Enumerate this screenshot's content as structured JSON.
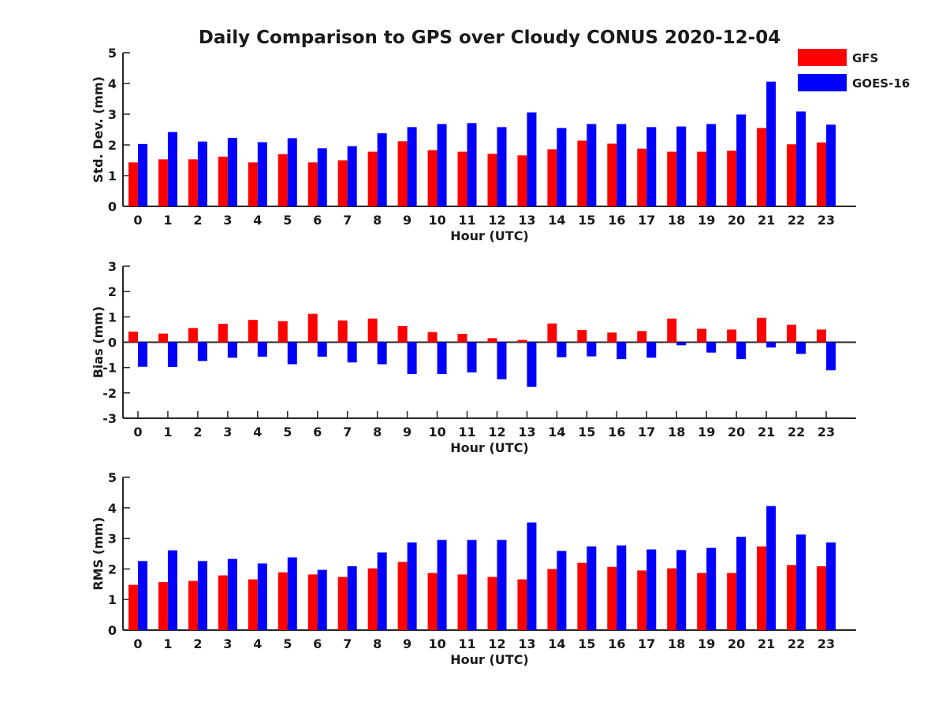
{
  "title": "Daily Comparison to GPS over Cloudy CONUS 2020-12-04",
  "legend": {
    "placement": "top-right",
    "entries": [
      {
        "label": "GFS",
        "color": "#ff0000"
      },
      {
        "label": "GOES-16",
        "color": "#0000ff"
      }
    ]
  },
  "chart_data": [
    {
      "type": "bar",
      "xlabel": "Hour (UTC)",
      "ylabel": "Std. Dev. (mm)",
      "ylim": [
        0,
        5
      ],
      "yticks": [
        0,
        1,
        2,
        3,
        4,
        5
      ],
      "categories": [
        "0",
        "1",
        "2",
        "3",
        "4",
        "5",
        "6",
        "7",
        "8",
        "9",
        "10",
        "11",
        "12",
        "13",
        "14",
        "15",
        "16",
        "17",
        "18",
        "19",
        "20",
        "21",
        "22",
        "23"
      ],
      "series": [
        {
          "name": "GFS",
          "color": "#ff0000",
          "values": [
            1.43,
            1.53,
            1.53,
            1.62,
            1.43,
            1.7,
            1.43,
            1.5,
            1.78,
            2.12,
            1.83,
            1.78,
            1.71,
            1.66,
            1.86,
            2.14,
            2.04,
            1.88,
            1.78,
            1.78,
            1.81,
            2.55,
            2.02,
            2.08
          ]
        },
        {
          "name": "GOES-16",
          "color": "#0000ff",
          "values": [
            2.03,
            2.42,
            2.11,
            2.23,
            2.09,
            2.22,
            1.89,
            1.96,
            2.38,
            2.58,
            2.68,
            2.71,
            2.58,
            3.06,
            2.55,
            2.68,
            2.68,
            2.58,
            2.6,
            2.68,
            2.99,
            4.06,
            3.09,
            2.66
          ]
        }
      ]
    },
    {
      "type": "bar",
      "xlabel": "Hour (UTC)",
      "ylabel": "Bias (mm)",
      "ylim": [
        -3,
        3
      ],
      "yticks": [
        -3,
        -2,
        -1,
        0,
        1,
        2,
        3
      ],
      "zero_line": true,
      "categories": [
        "0",
        "1",
        "2",
        "3",
        "4",
        "5",
        "6",
        "7",
        "8",
        "9",
        "10",
        "11",
        "12",
        "13",
        "14",
        "15",
        "16",
        "17",
        "18",
        "19",
        "20",
        "21",
        "22",
        "23"
      ],
      "series": [
        {
          "name": "GFS",
          "color": "#ff0000",
          "values": [
            0.42,
            0.34,
            0.56,
            0.73,
            0.88,
            0.83,
            1.12,
            0.86,
            0.93,
            0.64,
            0.4,
            0.33,
            0.16,
            0.09,
            0.74,
            0.48,
            0.38,
            0.44,
            0.93,
            0.53,
            0.5,
            0.96,
            0.69,
            0.5
          ]
        },
        {
          "name": "GOES-16",
          "color": "#0000ff",
          "values": [
            -0.97,
            -0.98,
            -0.74,
            -0.61,
            -0.57,
            -0.87,
            -0.57,
            -0.8,
            -0.87,
            -1.26,
            -1.26,
            -1.19,
            -1.46,
            -1.76,
            -0.59,
            -0.56,
            -0.67,
            -0.61,
            -0.12,
            -0.41,
            -0.67,
            -0.21,
            -0.46,
            -1.11
          ]
        }
      ]
    },
    {
      "type": "bar",
      "xlabel": "Hour (UTC)",
      "ylabel": "RMS (mm)",
      "ylim": [
        0,
        5
      ],
      "yticks": [
        0,
        1,
        2,
        3,
        4,
        5
      ],
      "categories": [
        "0",
        "1",
        "2",
        "3",
        "4",
        "5",
        "6",
        "7",
        "8",
        "9",
        "10",
        "11",
        "12",
        "13",
        "14",
        "15",
        "16",
        "17",
        "18",
        "19",
        "20",
        "21",
        "22",
        "23"
      ],
      "series": [
        {
          "name": "GFS",
          "color": "#ff0000",
          "values": [
            1.48,
            1.57,
            1.61,
            1.79,
            1.66,
            1.89,
            1.82,
            1.74,
            2.02,
            2.23,
            1.87,
            1.82,
            1.74,
            1.66,
            2.0,
            2.2,
            2.07,
            1.95,
            2.02,
            1.87,
            1.87,
            2.74,
            2.13,
            2.09
          ]
        },
        {
          "name": "GOES-16",
          "color": "#0000ff",
          "values": [
            2.26,
            2.61,
            2.26,
            2.33,
            2.18,
            2.38,
            1.97,
            2.09,
            2.54,
            2.87,
            2.95,
            2.95,
            2.95,
            3.52,
            2.59,
            2.74,
            2.77,
            2.64,
            2.62,
            2.69,
            3.05,
            4.06,
            3.13,
            2.87
          ]
        }
      ]
    }
  ]
}
